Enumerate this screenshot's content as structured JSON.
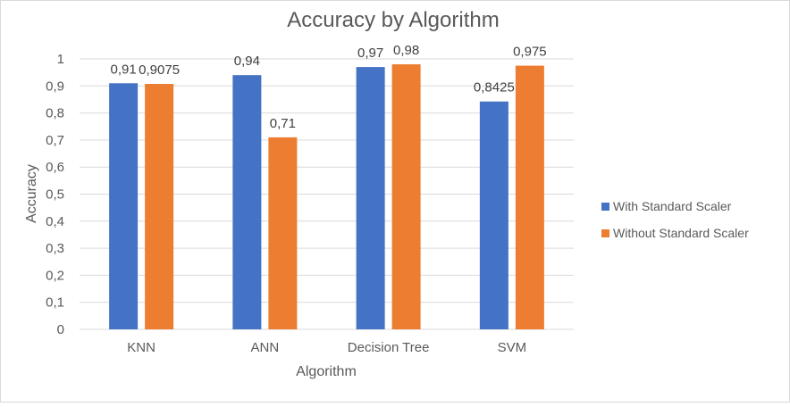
{
  "chart_data": {
    "type": "bar",
    "title": "Accuracy by Algorithm",
    "xlabel": "Algorithm",
    "ylabel": "Accuracy",
    "categories": [
      "KNN",
      "ANN",
      "Decision Tree",
      "SVM"
    ],
    "series": [
      {
        "name": "With Standard Scaler",
        "values": [
          0.91,
          0.94,
          0.97,
          0.8425
        ],
        "labels": [
          "0,91",
          "0,94",
          "0,97",
          "0,8425"
        ],
        "color": "#4472C4"
      },
      {
        "name": "Without Standard Scaler",
        "values": [
          0.9075,
          0.71,
          0.98,
          0.975
        ],
        "labels": [
          "0,9075",
          "0,71",
          "0,98",
          "0,975"
        ],
        "color": "#ED7D31"
      }
    ],
    "ylim": [
      0,
      1
    ],
    "yticks": [
      "0",
      "0,1",
      "0,2",
      "0,3",
      "0,4",
      "0,5",
      "0,6",
      "0,7",
      "0,8",
      "0,9",
      "1"
    ],
    "grid": true,
    "legend": "right"
  }
}
